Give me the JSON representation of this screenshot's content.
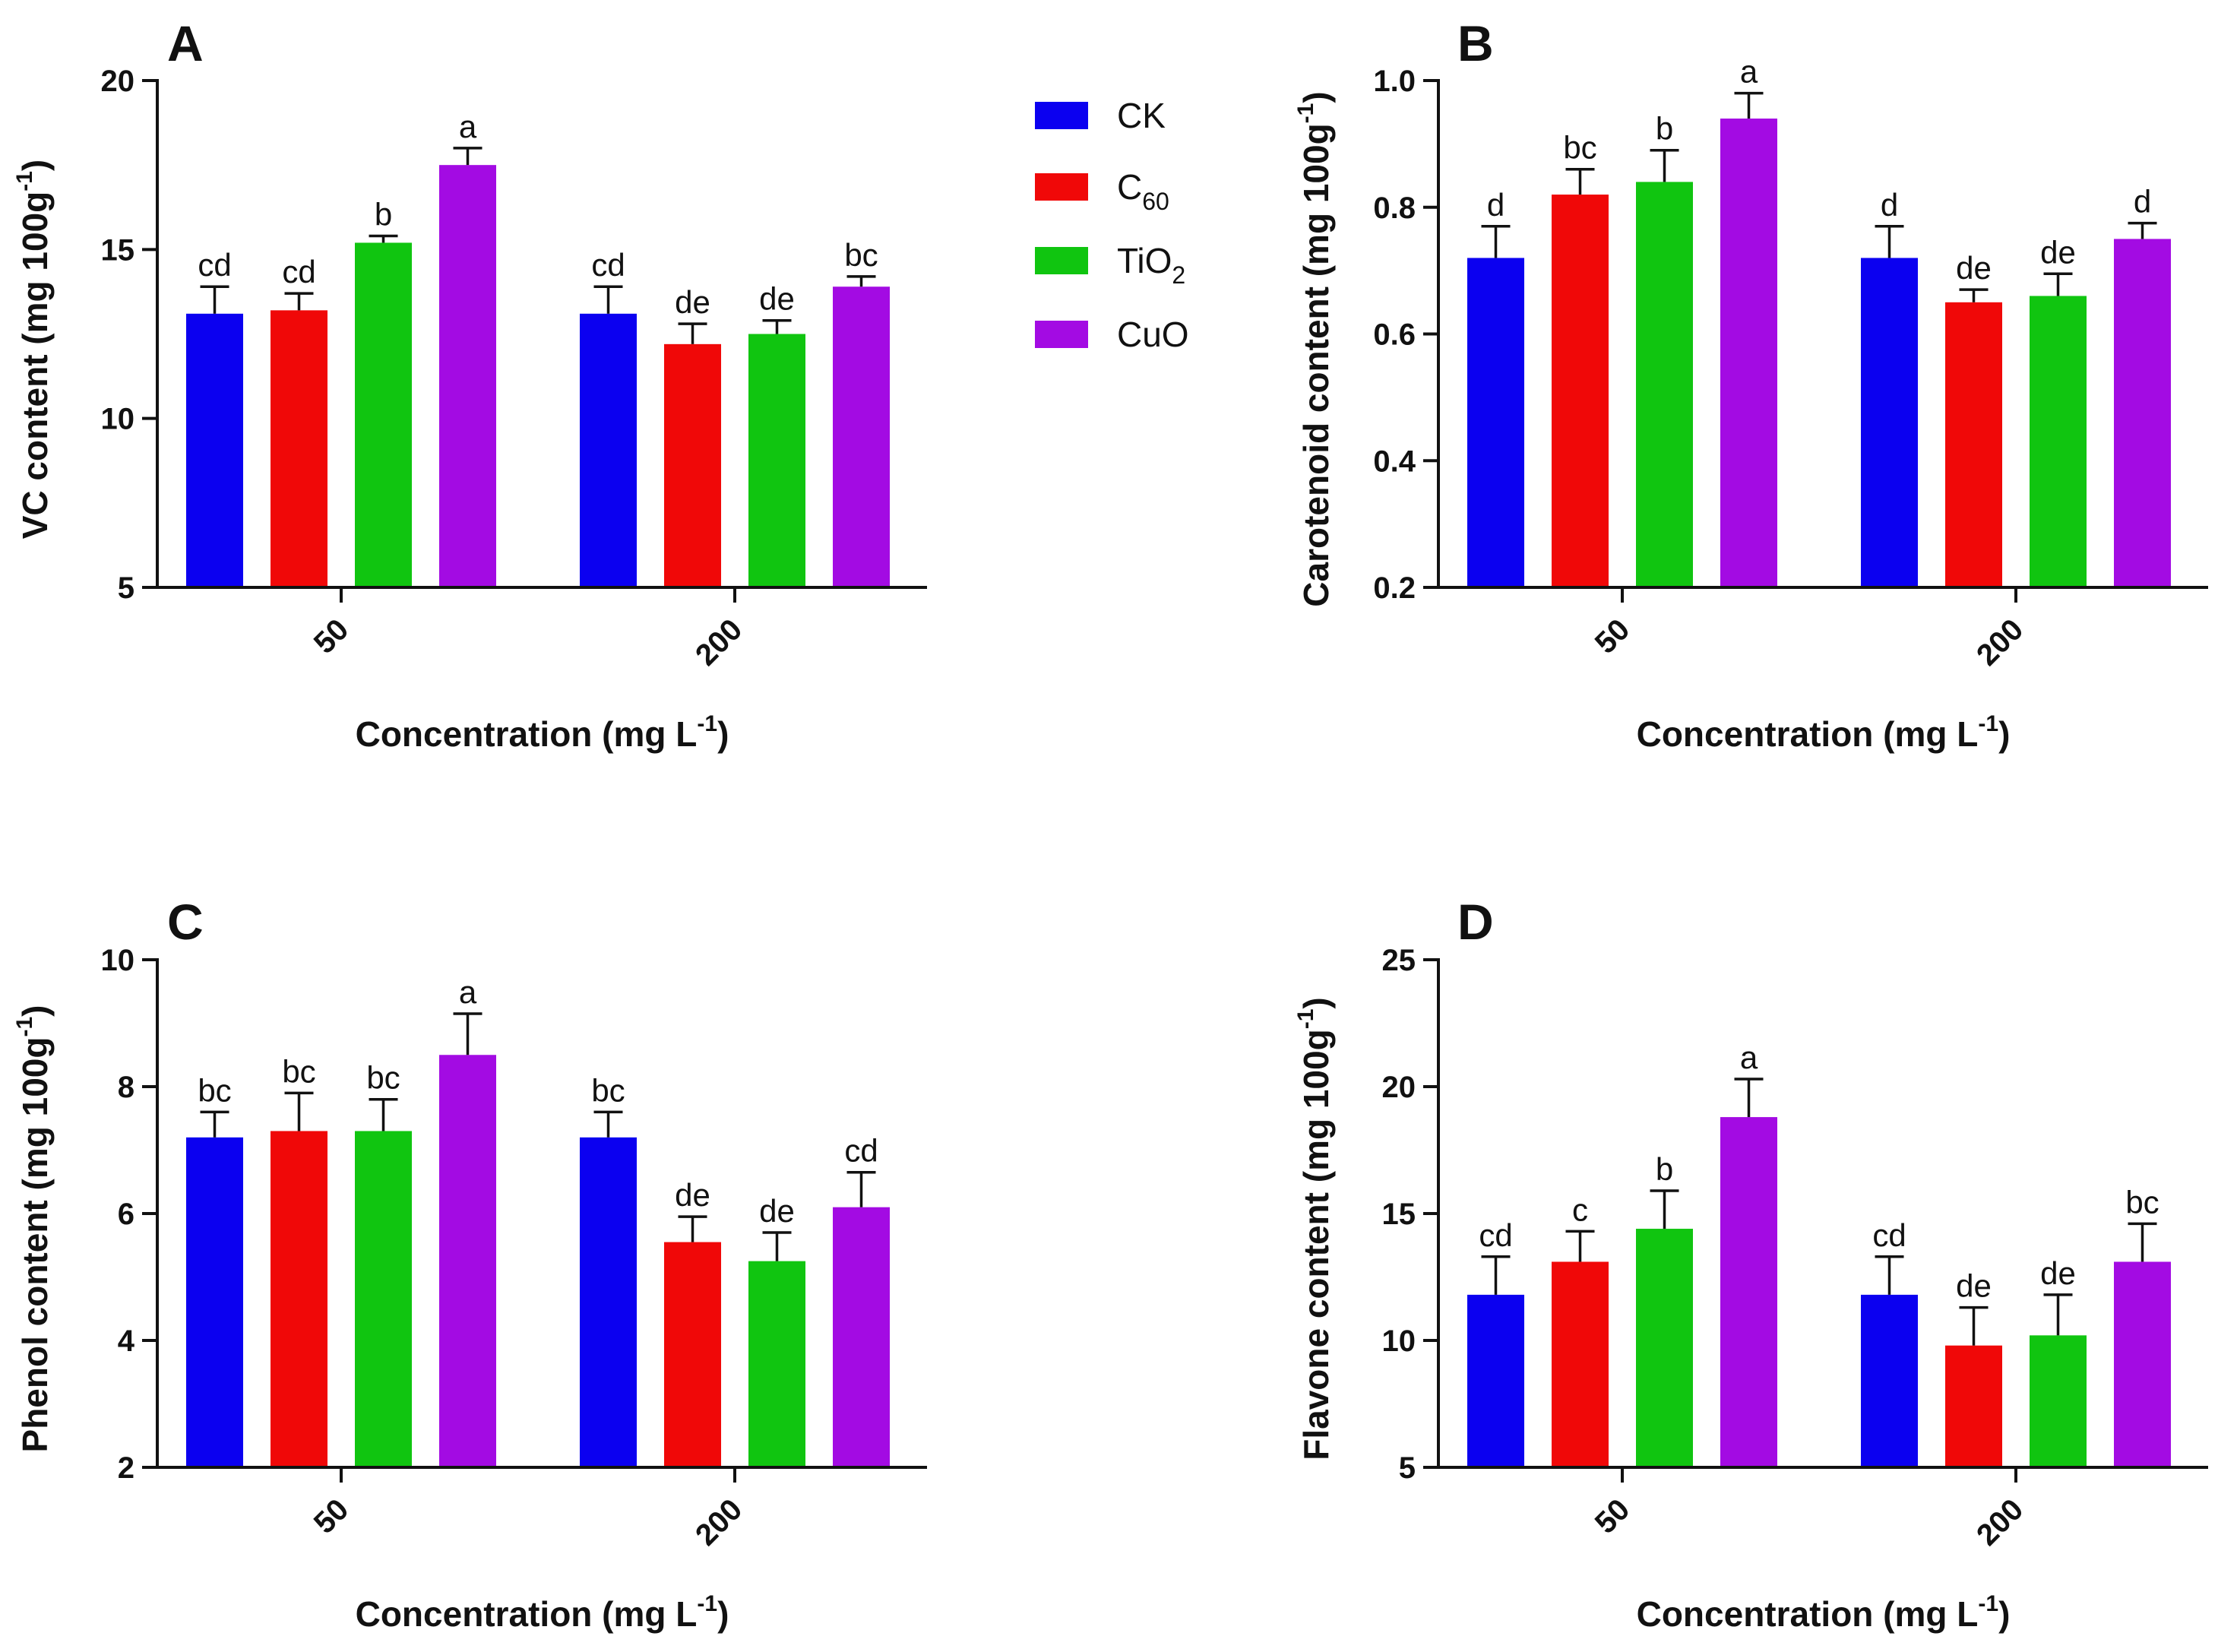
{
  "legend": {
    "items": [
      {
        "label": "CK",
        "sub": "",
        "color": "#0b00f0"
      },
      {
        "label": "C",
        "sub": "60",
        "color": "#f00808"
      },
      {
        "label": "TiO",
        "sub": "2",
        "color": "#10c510"
      },
      {
        "label": "CuO",
        "sub": "",
        "color": "#a30be3"
      }
    ]
  },
  "chart_data": [
    {
      "type": "bar",
      "panel_label": "A",
      "ylabel": "VC content (mg 100g",
      "ylabel_sup": "-1",
      "ylabel_close": ")",
      "xlabel": "Concentration (mg L",
      "xlabel_sup": "-1",
      "xlabel_close": ")",
      "ylim": [
        5,
        20
      ],
      "yticks": [
        "5",
        "10",
        "15",
        "20"
      ],
      "categories": [
        "50",
        "200"
      ],
      "series": [
        {
          "name": "CK",
          "values": [
            13.1,
            13.1
          ],
          "errors": [
            0.8,
            0.8
          ],
          "letters": [
            "cd",
            "cd"
          ]
        },
        {
          "name": "C60",
          "values": [
            13.2,
            12.2
          ],
          "errors": [
            0.5,
            0.6
          ],
          "letters": [
            "cd",
            "de"
          ]
        },
        {
          "name": "TiO2",
          "values": [
            15.2,
            12.5
          ],
          "errors": [
            0.2,
            0.4
          ],
          "letters": [
            "b",
            "de"
          ]
        },
        {
          "name": "CuO",
          "values": [
            17.5,
            13.9
          ],
          "errors": [
            0.5,
            0.3
          ],
          "letters": [
            "a",
            "bc"
          ]
        }
      ]
    },
    {
      "type": "bar",
      "panel_label": "B",
      "ylabel": "Carotenoid content (mg 100g",
      "ylabel_sup": "-1",
      "ylabel_close": ")",
      "xlabel": "Concentration (mg L",
      "xlabel_sup": "-1",
      "xlabel_close": ")",
      "ylim": [
        0.2,
        1.0
      ],
      "yticks": [
        "0.2",
        "0.4",
        "0.6",
        "0.8",
        "1.0"
      ],
      "categories": [
        "50",
        "200"
      ],
      "series": [
        {
          "name": "CK",
          "values": [
            0.72,
            0.72
          ],
          "errors": [
            0.05,
            0.05
          ],
          "letters": [
            "d",
            "d"
          ]
        },
        {
          "name": "C60",
          "values": [
            0.82,
            0.65
          ],
          "errors": [
            0.04,
            0.02
          ],
          "letters": [
            "bc",
            "de"
          ]
        },
        {
          "name": "TiO2",
          "values": [
            0.84,
            0.66
          ],
          "errors": [
            0.05,
            0.035
          ],
          "letters": [
            "b",
            "de"
          ]
        },
        {
          "name": "CuO",
          "values": [
            0.94,
            0.75
          ],
          "errors": [
            0.04,
            0.025
          ],
          "letters": [
            "a",
            "d"
          ]
        }
      ]
    },
    {
      "type": "bar",
      "panel_label": "C",
      "ylabel": "Phenol content (mg 100g",
      "ylabel_sup": "-1",
      "ylabel_close": ")",
      "xlabel": "Concentration (mg L",
      "xlabel_sup": "-1",
      "xlabel_close": ")",
      "ylim": [
        2,
        10
      ],
      "yticks": [
        "2",
        "4",
        "6",
        "8",
        "10"
      ],
      "categories": [
        "50",
        "200"
      ],
      "series": [
        {
          "name": "CK",
          "values": [
            7.2,
            7.2
          ],
          "errors": [
            0.4,
            0.4
          ],
          "letters": [
            "bc",
            "bc"
          ]
        },
        {
          "name": "C60",
          "values": [
            7.3,
            5.55
          ],
          "errors": [
            0.6,
            0.4
          ],
          "letters": [
            "bc",
            "de"
          ]
        },
        {
          "name": "TiO2",
          "values": [
            7.3,
            5.25
          ],
          "errors": [
            0.5,
            0.45
          ],
          "letters": [
            "bc",
            "de"
          ]
        },
        {
          "name": "CuO",
          "values": [
            8.5,
            6.1
          ],
          "errors": [
            0.65,
            0.55
          ],
          "letters": [
            "a",
            "cd"
          ]
        }
      ]
    },
    {
      "type": "bar",
      "panel_label": "D",
      "ylabel": "Flavone content (mg 100g",
      "ylabel_sup": "-1",
      "ylabel_close": ")",
      "xlabel": "Concentration (mg L",
      "xlabel_sup": "-1",
      "xlabel_close": ")",
      "ylim": [
        5,
        25
      ],
      "yticks": [
        "5",
        "10",
        "15",
        "20",
        "25"
      ],
      "categories": [
        "50",
        "200"
      ],
      "series": [
        {
          "name": "CK",
          "values": [
            11.8,
            11.8
          ],
          "errors": [
            1.5,
            1.5
          ],
          "letters": [
            "cd",
            "cd"
          ]
        },
        {
          "name": "C60",
          "values": [
            13.1,
            9.8
          ],
          "errors": [
            1.2,
            1.5
          ],
          "letters": [
            "c",
            "de"
          ]
        },
        {
          "name": "TiO2",
          "values": [
            14.4,
            10.2
          ],
          "errors": [
            1.5,
            1.6
          ],
          "letters": [
            "b",
            "de"
          ]
        },
        {
          "name": "CuO",
          "values": [
            18.8,
            13.1
          ],
          "errors": [
            1.5,
            1.5
          ],
          "letters": [
            "a",
            "bc"
          ]
        }
      ]
    }
  ]
}
